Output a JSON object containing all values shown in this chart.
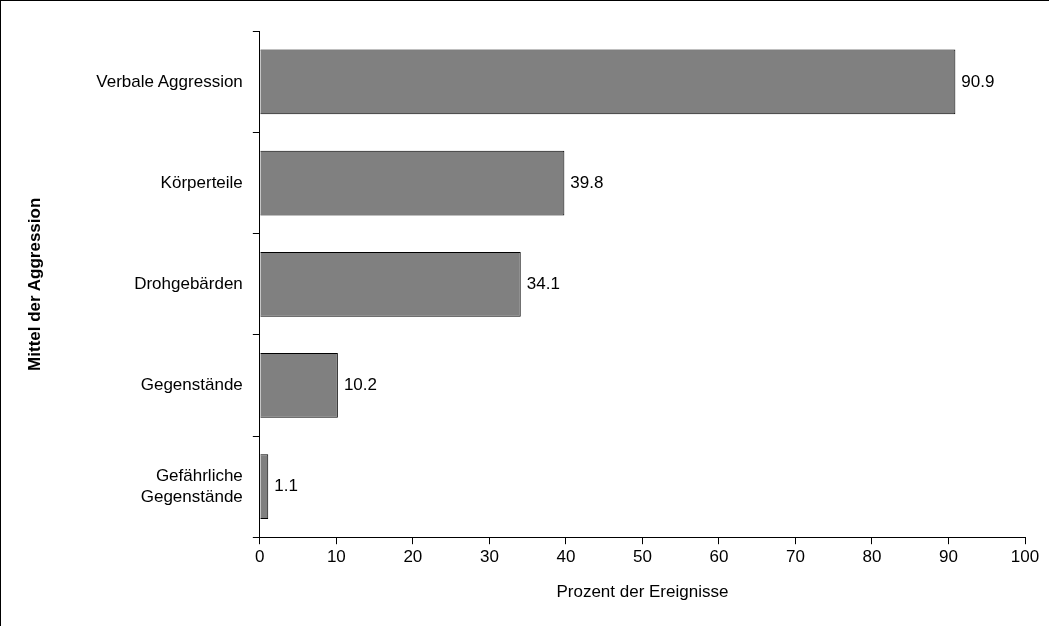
{
  "chart_data": {
    "type": "bar",
    "orientation": "horizontal",
    "categories": [
      "Verbale Aggression",
      "Körperteile",
      "Drohgebärden",
      "Gegenstände",
      "Gefährliche\nGegenstände"
    ],
    "values": [
      90.9,
      39.8,
      34.1,
      10.2,
      1.1
    ],
    "color": "#808080",
    "xlabel": "Prozent der Ereignisse",
    "ylabel": "Mittel der Aggression",
    "xlim": [
      0,
      100
    ],
    "xticks": [
      0,
      10,
      20,
      30,
      40,
      50,
      60,
      70,
      80,
      90,
      100
    ],
    "grid": false,
    "legend": false,
    "data_labels": true
  }
}
